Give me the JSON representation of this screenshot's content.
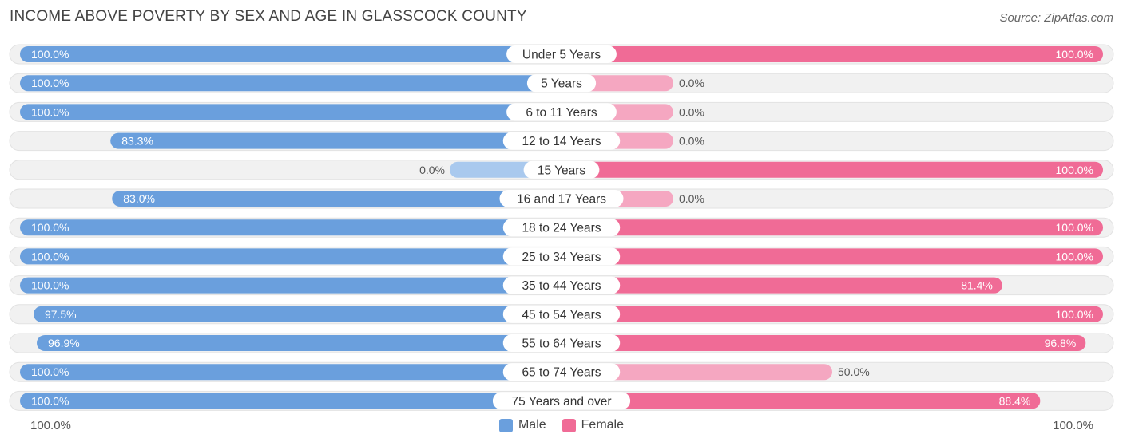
{
  "title": "INCOME ABOVE POVERTY BY SEX AND AGE IN GLASSCOCK COUNTY",
  "source": "Source: ZipAtlas.com",
  "axis": {
    "left_label": "100.0%",
    "right_label": "100.0%"
  },
  "legend": {
    "male": {
      "label": "Male",
      "color": "#6a9fdd"
    },
    "female": {
      "label": "Female",
      "color": "#f06b96"
    }
  },
  "colors": {
    "male_full": "#6a9fdd",
    "male_light": "#a9c9ee",
    "female_full": "#f06b96",
    "female_light": "#f5a7c1",
    "track": "#f1f1f1"
  },
  "chart_data": {
    "type": "bar",
    "orientation": "horizontal-diverging",
    "title": "INCOME ABOVE POVERTY BY SEX AND AGE IN GLASSCOCK COUNTY",
    "xlim": [
      0,
      100
    ],
    "unit": "%",
    "categories": [
      "Under 5 Years",
      "5 Years",
      "6 to 11 Years",
      "12 to 14 Years",
      "15 Years",
      "16 and 17 Years",
      "18 to 24 Years",
      "25 to 34 Years",
      "35 to 44 Years",
      "45 to 54 Years",
      "55 to 64 Years",
      "65 to 74 Years",
      "75 Years and over"
    ],
    "series": [
      {
        "name": "Male",
        "values": [
          100.0,
          100.0,
          100.0,
          83.3,
          0.0,
          83.0,
          100.0,
          100.0,
          100.0,
          97.5,
          96.9,
          100.0,
          100.0
        ],
        "labels": [
          "100.0%",
          "100.0%",
          "100.0%",
          "83.3%",
          "0.0%",
          "83.0%",
          "100.0%",
          "100.0%",
          "100.0%",
          "97.5%",
          "96.9%",
          "100.0%",
          "100.0%"
        ]
      },
      {
        "name": "Female",
        "values": [
          100.0,
          0.0,
          0.0,
          0.0,
          100.0,
          0.0,
          100.0,
          100.0,
          81.4,
          100.0,
          96.8,
          50.0,
          88.4
        ],
        "labels": [
          "100.0%",
          "0.0%",
          "0.0%",
          "0.0%",
          "100.0%",
          "0.0%",
          "100.0%",
          "100.0%",
          "81.4%",
          "100.0%",
          "96.8%",
          "50.0%",
          "88.4%"
        ]
      }
    ]
  }
}
